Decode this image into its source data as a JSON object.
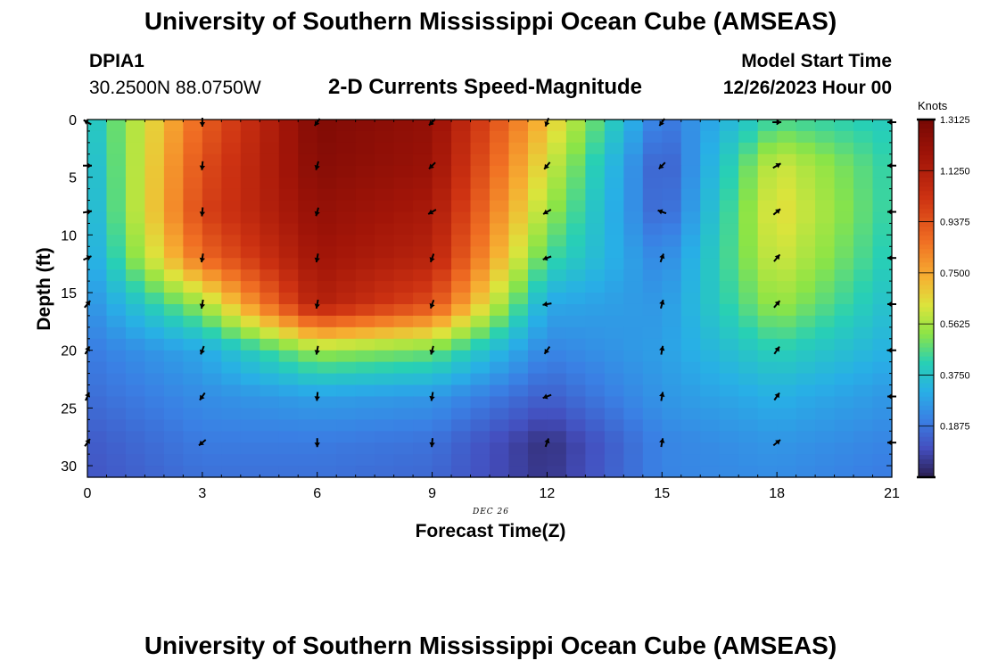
{
  "header": {
    "title": "University of Southern Mississippi Ocean Cube (AMSEAS)",
    "station": "DPIA1",
    "coords": "30.2500N  88.0750W",
    "plot_title": "2-D Currents Speed-Magnitude",
    "model_start_label": "Model Start Time",
    "model_start_value": "12/26/2023 Hour 00"
  },
  "footer": {
    "title": "University of Southern Mississippi Ocean Cube (AMSEAS)"
  },
  "chart_data": {
    "type": "heatmap",
    "title": "2-D Currents Speed-Magnitude",
    "xlabel": "Forecast Time(Z)",
    "ylabel": "Depth (ft)",
    "date_label": "DEC 26",
    "xlim": [
      0,
      21
    ],
    "ylim": [
      0,
      31
    ],
    "x_ticks": [
      "0",
      "3",
      "6",
      "9",
      "12",
      "15",
      "18",
      "21"
    ],
    "y_ticks": [
      "0",
      "5",
      "10",
      "15",
      "20",
      "25",
      "30"
    ],
    "colorbar": {
      "unit": "Knots",
      "min": 0,
      "max": 1.3125,
      "ticks": [
        "0.1875",
        "0.3750",
        "0.5625",
        "0.7500",
        "0.9375",
        "1.1250",
        "1.3125"
      ]
    },
    "times": [
      0,
      3,
      6,
      9,
      12,
      15,
      18,
      21
    ],
    "depths": [
      0,
      4,
      8,
      12,
      16,
      20,
      24,
      28,
      31
    ],
    "speed_knots": [
      [
        0.35,
        0.9,
        1.28,
        1.22,
        0.7,
        0.18,
        0.45,
        0.4
      ],
      [
        0.32,
        0.95,
        1.26,
        1.2,
        0.62,
        0.12,
        0.62,
        0.42
      ],
      [
        0.3,
        0.98,
        1.22,
        1.15,
        0.55,
        0.14,
        0.66,
        0.42
      ],
      [
        0.28,
        0.88,
        1.18,
        1.1,
        0.45,
        0.22,
        0.62,
        0.4
      ],
      [
        0.24,
        0.55,
        1.12,
        0.95,
        0.3,
        0.26,
        0.55,
        0.36
      ],
      [
        0.2,
        0.3,
        0.55,
        0.5,
        0.22,
        0.28,
        0.42,
        0.32
      ],
      [
        0.17,
        0.24,
        0.28,
        0.26,
        0.14,
        0.26,
        0.32,
        0.26
      ],
      [
        0.13,
        0.2,
        0.2,
        0.18,
        0.04,
        0.22,
        0.26,
        0.22
      ],
      [
        0.12,
        0.18,
        0.18,
        0.16,
        0.05,
        0.22,
        0.24,
        0.2
      ]
    ],
    "arrow_depths": [
      0,
      4,
      8,
      12,
      16,
      20,
      24,
      28
    ],
    "arrow_directions_deg": [
      [
        300,
        180,
        215,
        225,
        200,
        215,
        90,
        270
      ],
      [
        90,
        185,
        195,
        225,
        220,
        225,
        60,
        270
      ],
      [
        80,
        185,
        195,
        240,
        240,
        290,
        50,
        270
      ],
      [
        65,
        190,
        190,
        200,
        250,
        20,
        40,
        270
      ],
      [
        40,
        190,
        190,
        200,
        260,
        15,
        40,
        270
      ],
      [
        30,
        200,
        190,
        195,
        215,
        10,
        35,
        270
      ],
      [
        25,
        215,
        185,
        190,
        250,
        10,
        35,
        270
      ],
      [
        35,
        230,
        180,
        185,
        20,
        10,
        50,
        270
      ]
    ]
  }
}
